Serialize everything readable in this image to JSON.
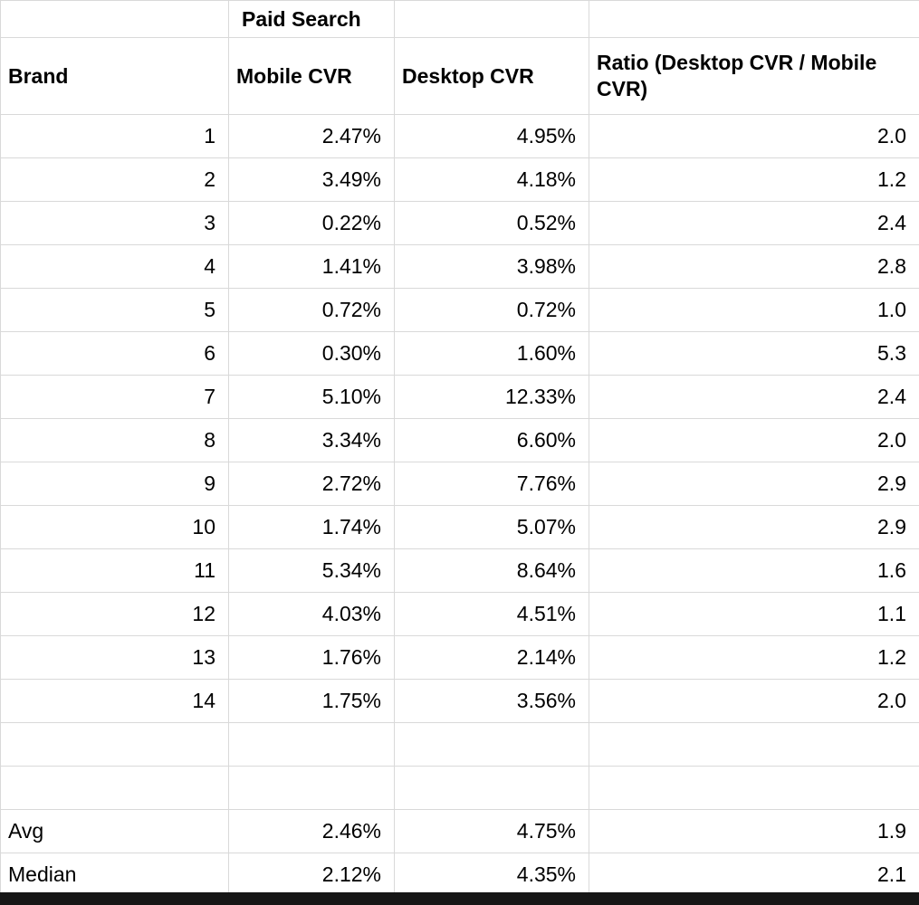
{
  "colors": {
    "background": "#ffffff",
    "grid_line": "#d9d9d9",
    "text": "#000000",
    "bottom_bar": "#161616"
  },
  "table": {
    "group_header": "Paid Search",
    "columns": [
      "Brand",
      "Mobile CVR",
      "Desktop CVR",
      "Ratio (Desktop CVR / Mobile CVR)"
    ],
    "rows": [
      [
        "1",
        "2.47%",
        "4.95%",
        "2.0"
      ],
      [
        "2",
        "3.49%",
        "4.18%",
        "1.2"
      ],
      [
        "3",
        "0.22%",
        "0.52%",
        "2.4"
      ],
      [
        "4",
        "1.41%",
        "3.98%",
        "2.8"
      ],
      [
        "5",
        "0.72%",
        "0.72%",
        "1.0"
      ],
      [
        "6",
        "0.30%",
        "1.60%",
        "5.3"
      ],
      [
        "7",
        "5.10%",
        "12.33%",
        "2.4"
      ],
      [
        "8",
        "3.34%",
        "6.60%",
        "2.0"
      ],
      [
        "9",
        "2.72%",
        "7.76%",
        "2.9"
      ],
      [
        "10",
        "1.74%",
        "5.07%",
        "2.9"
      ],
      [
        "11",
        "5.34%",
        "8.64%",
        "1.6"
      ],
      [
        "12",
        "4.03%",
        "4.51%",
        "1.1"
      ],
      [
        "13",
        "1.76%",
        "2.14%",
        "1.2"
      ],
      [
        "14",
        "1.75%",
        "3.56%",
        "2.0"
      ]
    ],
    "empty_row_count": 2,
    "summary_rows": [
      [
        "Avg",
        "2.46%",
        "4.75%",
        "1.9"
      ],
      [
        "Median",
        "2.12%",
        "4.35%",
        "2.1"
      ]
    ]
  },
  "chart_data": {
    "type": "table",
    "title": "Paid Search",
    "columns": [
      "Brand",
      "Mobile CVR",
      "Desktop CVR",
      "Ratio (Desktop CVR / Mobile CVR)"
    ],
    "rows": [
      [
        1,
        2.47,
        4.95,
        2.0
      ],
      [
        2,
        3.49,
        4.18,
        1.2
      ],
      [
        3,
        0.22,
        0.52,
        2.4
      ],
      [
        4,
        1.41,
        3.98,
        2.8
      ],
      [
        5,
        0.72,
        0.72,
        1.0
      ],
      [
        6,
        0.3,
        1.6,
        5.3
      ],
      [
        7,
        5.1,
        12.33,
        2.4
      ],
      [
        8,
        3.34,
        6.6,
        2.0
      ],
      [
        9,
        2.72,
        7.76,
        2.9
      ],
      [
        10,
        1.74,
        5.07,
        2.9
      ],
      [
        11,
        5.34,
        8.64,
        1.6
      ],
      [
        12,
        4.03,
        4.51,
        1.1
      ],
      [
        13,
        1.76,
        2.14,
        1.2
      ],
      [
        14,
        1.75,
        3.56,
        2.0
      ]
    ],
    "units": {
      "Mobile CVR": "%",
      "Desktop CVR": "%"
    },
    "summary": {
      "avg": {
        "mobile_cvr": 2.46,
        "desktop_cvr": 4.75,
        "ratio": 1.9
      },
      "median": {
        "mobile_cvr": 2.12,
        "desktop_cvr": 4.35,
        "ratio": 2.1
      }
    }
  }
}
